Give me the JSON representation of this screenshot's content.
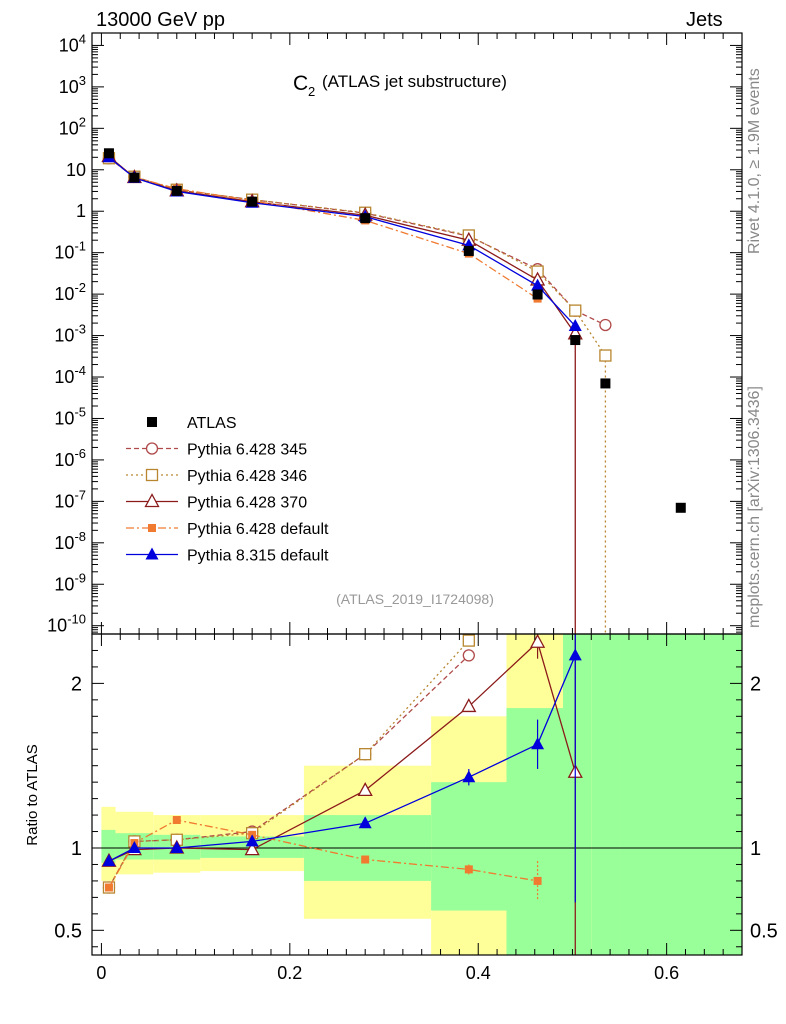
{
  "header": {
    "left": "13000 GeV pp",
    "right": "Jets",
    "rivet": "Rivet 4.1.0, ≥ 1.9M events",
    "site": "mcplots.cern.ch [arXiv:1306.3436]"
  },
  "chart_data": {
    "type": "line",
    "title_main": "C",
    "title_sub": "2",
    "title_rest": "(ATLAS jet substructure)",
    "analysis_id": "(ATLAS_2019_I1724098)",
    "xlabel": "",
    "ylabel_ratio": "Ratio to ATLAS",
    "xlim": [
      -0.01,
      0.68
    ],
    "ylim_top_log10": [
      -10.2,
      4.3
    ],
    "ylim_ratio": [
      0.35,
      2.3
    ],
    "x_ticks": [
      0,
      0.2,
      0.4,
      0.6
    ],
    "x_tick_labels": [
      "0",
      "0.2",
      "0.4",
      "0.6"
    ],
    "y_ticks_log10": [
      4,
      3,
      2,
      1,
      0,
      -1,
      -2,
      -3,
      -4,
      -5,
      -6,
      -7,
      -8,
      -9,
      -10
    ],
    "y_tick_labels_top": [
      "10^4",
      "10^3",
      "10^2",
      "10",
      "1",
      "10^-1",
      "10^-2",
      "10^-3",
      "10^-4",
      "10^-5",
      "10^-6",
      "10^-7",
      "10^-8",
      "10^-9",
      "10^-10"
    ],
    "y_ticks_ratio": [
      0.5,
      1,
      2
    ],
    "y_tick_labels_ratio": [
      "0.5",
      "1",
      "2"
    ],
    "bin_edges": [
      0,
      0.015,
      0.055,
      0.105,
      0.215,
      0.35,
      0.43,
      0.49,
      0.52,
      0.55,
      0.68
    ],
    "data": {
      "name": "ATLAS",
      "color": "#000000",
      "x": [
        0.008,
        0.035,
        0.08,
        0.16,
        0.28,
        0.39,
        0.463,
        0.503,
        0.535,
        0.615
      ],
      "y": [
        25,
        6.5,
        3.1,
        1.7,
        0.68,
        0.11,
        0.0098,
        0.00078,
        7e-05,
        7e-08
      ]
    },
    "bands": {
      "stat_color": "#99ff99",
      "total_color": "#ffff99",
      "stat": [
        [
          0.91,
          1.11
        ],
        [
          0.93,
          1.09
        ],
        [
          0.93,
          1.08
        ],
        [
          0.94,
          1.07
        ],
        [
          0.8,
          1.2
        ],
        [
          0.62,
          1.4
        ],
        [
          0.35,
          1.85
        ],
        [
          0.35,
          2.3
        ],
        [
          0.35,
          2.3
        ],
        [
          0.35,
          2.3
        ]
      ],
      "total": [
        [
          0.8,
          1.25
        ],
        [
          0.84,
          1.22
        ],
        [
          0.85,
          1.2
        ],
        [
          0.86,
          1.2
        ],
        [
          0.57,
          1.5
        ],
        [
          0.35,
          1.8
        ],
        [
          0.35,
          2.3
        ],
        [
          0.35,
          2.3
        ],
        [
          0.35,
          2.3
        ],
        [
          0.35,
          2.3
        ]
      ]
    },
    "series": [
      {
        "name": "Pythia 6.428 345",
        "color": "#b04a4a",
        "dash": "5,3",
        "marker": "circle-open",
        "x": [
          0.008,
          0.035,
          0.08,
          0.16,
          0.28,
          0.39,
          0.463,
          0.503,
          0.535
        ],
        "y": [
          19,
          6.8,
          3.3,
          1.9,
          0.9,
          0.25,
          0.04,
          0.004,
          0.0018
        ],
        "ratio": [
          0.76,
          1.04,
          1.05,
          1.1,
          1.57,
          2.17,
          null,
          null,
          null
        ],
        "ratio_err": [
          0,
          0,
          0,
          0,
          0,
          0,
          0,
          0,
          0
        ]
      },
      {
        "name": "Pythia 6.428 346",
        "color": "#b8862f",
        "dash": "2,3",
        "marker": "square-open",
        "x": [
          0.008,
          0.035,
          0.08,
          0.16,
          0.28,
          0.39,
          0.463,
          0.503,
          0.535
        ],
        "y": [
          19,
          6.8,
          3.3,
          1.9,
          0.92,
          0.26,
          0.035,
          0.004,
          0.00033
        ],
        "ratio": [
          0.76,
          1.04,
          1.05,
          1.09,
          1.57,
          2.26,
          null,
          null,
          null
        ],
        "ratio_err": [
          0,
          0,
          0,
          0,
          0,
          0,
          0,
          0,
          0
        ]
      },
      {
        "name": "Pythia 6.428 370",
        "color": "#8b1a1a",
        "dash": "",
        "marker": "triangle-open",
        "x": [
          0.008,
          0.035,
          0.08,
          0.16,
          0.28,
          0.39,
          0.463,
          0.503
        ],
        "y": [
          21,
          6.5,
          3.1,
          1.7,
          0.8,
          0.2,
          0.022,
          0.0011
        ],
        "ratio": [
          0.92,
          0.99,
          1.0,
          0.99,
          1.35,
          1.86,
          2.25,
          1.46
        ],
        "ratio_err": [
          0,
          0,
          0,
          0,
          0,
          0,
          0.1,
          0
        ]
      },
      {
        "name": "Pythia 6.428 default",
        "color": "#f07a30",
        "dash": "8,3,2,3",
        "marker": "square-filled",
        "x": [
          0.008,
          0.035,
          0.08,
          0.16,
          0.28,
          0.39,
          0.463
        ],
        "y": [
          19,
          6.6,
          3.5,
          1.8,
          0.6,
          0.095,
          0.0078
        ],
        "ratio": [
          0.76,
          1.03,
          1.17,
          1.08,
          0.93,
          0.87,
          0.8
        ],
        "ratio_err": [
          0,
          0,
          0.02,
          0,
          0,
          0.03,
          0.12
        ]
      },
      {
        "name": "Pythia 8.315 default",
        "color": "#0000dd",
        "dash": "",
        "marker": "triangle-filled",
        "x": [
          0.008,
          0.035,
          0.08,
          0.16,
          0.28,
          0.39,
          0.463,
          0.503
        ],
        "y": [
          20,
          6.4,
          3.0,
          1.6,
          0.74,
          0.15,
          0.016,
          0.0017
        ],
        "ratio": [
          0.92,
          1.0,
          1.0,
          1.04,
          1.15,
          1.43,
          1.63,
          2.17
        ],
        "ratio_err": [
          0,
          0,
          0,
          0,
          0,
          0.05,
          0.15,
          1.5
        ]
      }
    ]
  }
}
